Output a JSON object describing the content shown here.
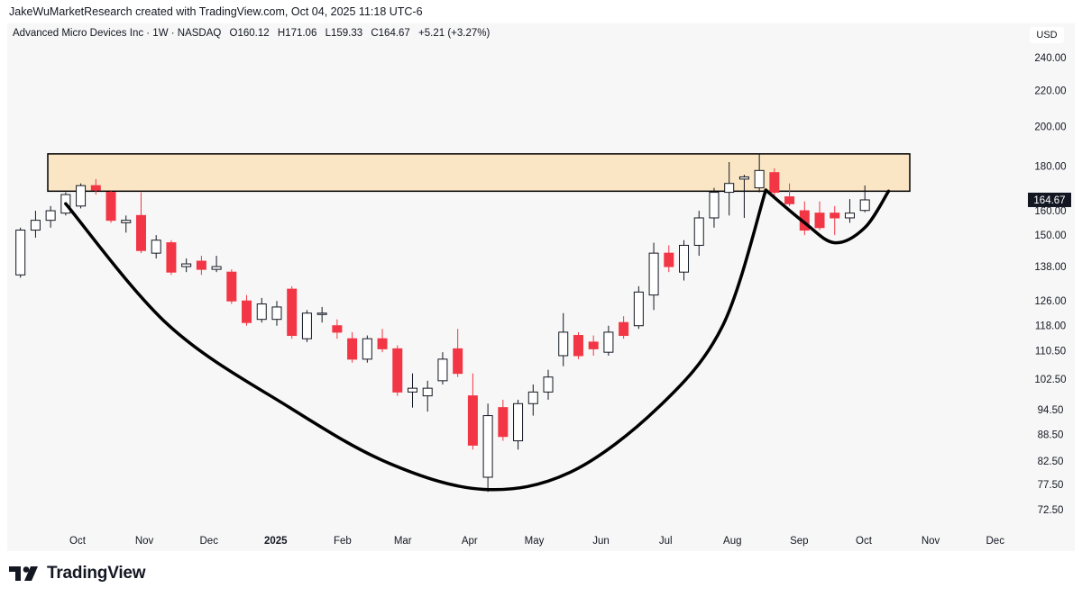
{
  "header": {
    "attribution": "JakeWuMarketResearch created with TradingView.com, Oct 04, 2025 11:18 UTC-6"
  },
  "legend": {
    "symbol": "Advanced Micro Devices Inc · 1W · NASDAQ",
    "open": "O160.12",
    "high": "H171.06",
    "low": "L159.33",
    "close": "C164.67",
    "change": "+5.21 (+3.27%)"
  },
  "currency": "USD",
  "footer": {
    "brand": "TradingView"
  },
  "colors": {
    "up_fill": "#ffffff",
    "down_fill": "#f23645",
    "wick_up": "#131722",
    "wick_down": "#f23645",
    "zone_fill": "#fae6c4",
    "curve": "#000000",
    "last_price_bg": "#131722"
  },
  "chart_data": {
    "type": "candlestick",
    "interval": "1W",
    "y_scale": "log",
    "price_ticks": [
      240.0,
      220.0,
      200.0,
      180.0,
      160.0,
      150.0,
      138.0,
      126.0,
      118.0,
      110.5,
      102.5,
      94.5,
      88.5,
      82.5,
      77.5,
      72.5
    ],
    "time_labels": [
      {
        "label": "Oct",
        "date": "2024-10-01"
      },
      {
        "label": "Nov",
        "date": "2024-11-01"
      },
      {
        "label": "Dec",
        "date": "2024-12-01"
      },
      {
        "label": "2025",
        "date": "2025-01-01",
        "bold": true
      },
      {
        "label": "Feb",
        "date": "2025-02-01"
      },
      {
        "label": "Mar",
        "date": "2025-03-01"
      },
      {
        "label": "Apr",
        "date": "2025-04-01"
      },
      {
        "label": "May",
        "date": "2025-05-01"
      },
      {
        "label": "Jun",
        "date": "2025-06-01"
      },
      {
        "label": "Jul",
        "date": "2025-07-01"
      },
      {
        "label": "Aug",
        "date": "2025-08-01"
      },
      {
        "label": "Sep",
        "date": "2025-09-01"
      },
      {
        "label": "Oct",
        "date": "2025-10-01"
      },
      {
        "label": "Nov",
        "date": "2025-11-01"
      },
      {
        "label": "Dec",
        "date": "2025-12-01"
      }
    ],
    "last_price": "164.67",
    "candles": [
      {
        "date": "2024-09-02",
        "o": 135,
        "h": 153,
        "l": 134,
        "c": 152
      },
      {
        "date": "2024-09-09",
        "o": 152,
        "h": 160,
        "l": 149,
        "c": 156
      },
      {
        "date": "2024-09-16",
        "o": 156,
        "h": 162,
        "l": 153,
        "c": 160
      },
      {
        "date": "2024-09-23",
        "o": 159,
        "h": 168,
        "l": 158,
        "c": 167
      },
      {
        "date": "2024-09-30",
        "o": 162,
        "h": 172,
        "l": 161,
        "c": 171
      },
      {
        "date": "2024-10-07",
        "o": 171,
        "h": 174,
        "l": 167,
        "c": 169
      },
      {
        "date": "2024-10-14",
        "o": 168,
        "h": 169,
        "l": 155,
        "c": 156
      },
      {
        "date": "2024-10-21",
        "o": 155,
        "h": 158,
        "l": 151,
        "c": 156
      },
      {
        "date": "2024-10-28",
        "o": 158,
        "h": 168,
        "l": 143,
        "c": 144
      },
      {
        "date": "2024-11-04",
        "o": 143,
        "h": 150,
        "l": 141,
        "c": 148
      },
      {
        "date": "2024-11-11",
        "o": 147,
        "h": 148,
        "l": 135,
        "c": 136
      },
      {
        "date": "2024-11-18",
        "o": 138,
        "h": 141,
        "l": 136,
        "c": 139
      },
      {
        "date": "2024-11-25",
        "o": 140,
        "h": 142,
        "l": 135,
        "c": 137
      },
      {
        "date": "2024-12-02",
        "o": 137,
        "h": 142,
        "l": 136,
        "c": 138
      },
      {
        "date": "2024-12-09",
        "o": 136,
        "h": 137,
        "l": 125,
        "c": 126
      },
      {
        "date": "2024-12-16",
        "o": 126,
        "h": 128,
        "l": 118,
        "c": 119
      },
      {
        "date": "2024-12-23",
        "o": 120,
        "h": 127,
        "l": 119,
        "c": 125
      },
      {
        "date": "2024-12-30",
        "o": 120,
        "h": 126,
        "l": 118,
        "c": 124
      },
      {
        "date": "2025-01-06",
        "o": 130,
        "h": 131,
        "l": 114,
        "c": 115
      },
      {
        "date": "2025-01-13",
        "o": 114,
        "h": 123,
        "l": 113,
        "c": 122
      },
      {
        "date": "2025-01-20",
        "o": 122,
        "h": 124,
        "l": 119,
        "c": 122
      },
      {
        "date": "2025-01-27",
        "o": 118,
        "h": 120,
        "l": 114,
        "c": 116
      },
      {
        "date": "2025-02-03",
        "o": 114,
        "h": 116,
        "l": 107,
        "c": 108
      },
      {
        "date": "2025-02-10",
        "o": 108,
        "h": 115,
        "l": 107,
        "c": 114
      },
      {
        "date": "2025-02-17",
        "o": 114,
        "h": 117,
        "l": 110,
        "c": 111
      },
      {
        "date": "2025-02-24",
        "o": 111,
        "h": 112,
        "l": 98,
        "c": 99
      },
      {
        "date": "2025-03-03",
        "o": 99,
        "h": 104,
        "l": 95,
        "c": 100
      },
      {
        "date": "2025-03-10",
        "o": 98,
        "h": 102,
        "l": 94,
        "c": 100
      },
      {
        "date": "2025-03-17",
        "o": 102,
        "h": 110,
        "l": 101,
        "c": 108
      },
      {
        "date": "2025-03-24",
        "o": 111,
        "h": 117,
        "l": 103,
        "c": 104
      },
      {
        "date": "2025-03-31",
        "o": 98,
        "h": 104,
        "l": 85,
        "c": 86
      },
      {
        "date": "2025-04-07",
        "o": 79,
        "h": 96,
        "l": 76,
        "c": 93
      },
      {
        "date": "2025-04-14",
        "o": 95,
        "h": 97,
        "l": 87,
        "c": 88
      },
      {
        "date": "2025-04-21",
        "o": 87,
        "h": 97,
        "l": 85,
        "c": 96
      },
      {
        "date": "2025-04-28",
        "o": 96,
        "h": 101,
        "l": 93,
        "c": 99
      },
      {
        "date": "2025-05-05",
        "o": 99,
        "h": 105,
        "l": 97,
        "c": 103
      },
      {
        "date": "2025-05-12",
        "o": 109,
        "h": 122,
        "l": 106,
        "c": 116
      },
      {
        "date": "2025-05-19",
        "o": 115,
        "h": 116,
        "l": 108,
        "c": 109
      },
      {
        "date": "2025-05-26",
        "o": 113,
        "h": 115,
        "l": 109,
        "c": 111
      },
      {
        "date": "2025-06-02",
        "o": 110,
        "h": 118,
        "l": 109,
        "c": 116
      },
      {
        "date": "2025-06-09",
        "o": 119,
        "h": 121,
        "l": 114,
        "c": 115
      },
      {
        "date": "2025-06-16",
        "o": 118,
        "h": 131,
        "l": 117,
        "c": 129
      },
      {
        "date": "2025-06-23",
        "o": 128,
        "h": 147,
        "l": 123,
        "c": 143
      },
      {
        "date": "2025-06-30",
        "o": 143,
        "h": 146,
        "l": 136,
        "c": 138
      },
      {
        "date": "2025-07-07",
        "o": 136,
        "h": 148,
        "l": 133,
        "c": 146
      },
      {
        "date": "2025-07-14",
        "o": 146,
        "h": 160,
        "l": 142,
        "c": 157
      },
      {
        "date": "2025-07-21",
        "o": 157,
        "h": 170,
        "l": 153,
        "c": 168
      },
      {
        "date": "2025-07-28",
        "o": 168,
        "h": 182,
        "l": 158,
        "c": 172
      },
      {
        "date": "2025-08-04",
        "o": 174,
        "h": 176,
        "l": 157,
        "c": 175
      },
      {
        "date": "2025-08-11",
        "o": 170,
        "h": 186,
        "l": 168,
        "c": 178
      },
      {
        "date": "2025-08-18",
        "o": 177,
        "h": 179,
        "l": 165,
        "c": 168
      },
      {
        "date": "2025-08-25",
        "o": 166,
        "h": 172,
        "l": 162,
        "c": 163
      },
      {
        "date": "2025-09-01",
        "o": 160,
        "h": 164,
        "l": 150,
        "c": 152
      },
      {
        "date": "2025-09-08",
        "o": 159,
        "h": 164,
        "l": 152,
        "c": 153
      },
      {
        "date": "2025-09-15",
        "o": 159,
        "h": 162,
        "l": 150,
        "c": 157
      },
      {
        "date": "2025-09-22",
        "o": 157,
        "h": 165,
        "l": 155,
        "c": 159
      },
      {
        "date": "2025-09-29",
        "o": 160.12,
        "h": 171.06,
        "l": 159.33,
        "c": 164.67
      }
    ],
    "annotations": {
      "resistance_zone": {
        "price_low": 168.5,
        "price_high": 186,
        "date_start": "2024-09-16",
        "date_end": "2025-10-10"
      },
      "cup_curve": [
        {
          "date": "2024-09-23",
          "price": 163
        },
        {
          "date": "2024-11-10",
          "price": 118
        },
        {
          "date": "2025-01-05",
          "price": 95
        },
        {
          "date": "2025-02-20",
          "price": 82
        },
        {
          "date": "2025-04-05",
          "price": 76.5
        },
        {
          "date": "2025-05-15",
          "price": 80
        },
        {
          "date": "2025-06-25",
          "price": 95
        },
        {
          "date": "2025-07-25",
          "price": 118
        },
        {
          "date": "2025-08-14",
          "price": 169
        }
      ],
      "handle_curve": [
        {
          "date": "2025-08-14",
          "price": 169
        },
        {
          "date": "2025-09-01",
          "price": 155
        },
        {
          "date": "2025-09-15",
          "price": 147
        },
        {
          "date": "2025-09-29",
          "price": 153
        },
        {
          "date": "2025-10-10",
          "price": 168.5
        }
      ]
    }
  }
}
